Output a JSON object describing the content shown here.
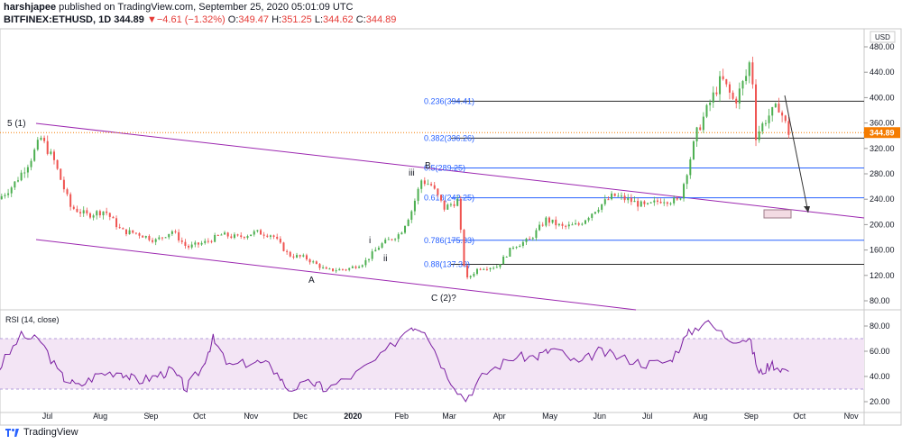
{
  "header": {
    "author": "harshjapee",
    "published_text": "published on TradingView.com, September 25, 2020 05:01:09 UTC",
    "symbol": "BITFINEX:ETHUSD, 1D",
    "last": "344.89",
    "change_arrow": "▼",
    "change": "−4.61 (−1.32%)",
    "open_label": "O:",
    "open": "349.47",
    "high_label": "H:",
    "high": "351.25",
    "low_label": "L:",
    "low": "344.62",
    "close_label": "C:",
    "close": "344.89"
  },
  "footer": {
    "brand": "TradingView"
  },
  "colors": {
    "up": "#26a69a",
    "up_fill": "#4caf50",
    "down": "#ef5350",
    "channel": "#9c27b0",
    "fib": "#2962ff",
    "rsi": "#7b1fa2",
    "rsi_band": "#f3e5f5",
    "price_tag": "#f57c00"
  },
  "chart_data": [
    {
      "type": "candlestick",
      "currency_label": "USD",
      "y_ticks": [
        "480.00",
        "440.00",
        "400.00",
        "360.00",
        "320.00",
        "280.00",
        "240.00",
        "200.00",
        "160.00",
        "120.00",
        "80.00"
      ],
      "x_ticks": [
        "Jul",
        "Aug",
        "Sep",
        "Oct",
        "Nov",
        "Dec",
        "2020",
        "Feb",
        "Mar",
        "Apr",
        "May",
        "Jun",
        "Jul",
        "Aug",
        "Sep",
        "Oct",
        "Nov"
      ],
      "ylim": [
        60,
        500
      ],
      "last_price": "344.89",
      "wave_labels": [
        "5 (1)",
        "A",
        "B",
        "C (2)?",
        "i",
        "ii",
        "iii"
      ],
      "fib_levels": [
        {
          "label": "0.236(394.41)",
          "value": 394.41
        },
        {
          "label": "0.382(336.26)",
          "value": 336.26
        },
        {
          "label": "0.5(289.25)",
          "value": 289.25
        },
        {
          "label": "0.618(242.25)",
          "value": 242.25
        },
        {
          "label": "0.786(175.33)",
          "value": 175.33
        },
        {
          "label": "0.88(137.39)",
          "value": 137.39
        }
      ],
      "close_path": [
        [
          "2019-06-01",
          240
        ],
        [
          "2019-06-10",
          262
        ],
        [
          "2019-06-20",
          300
        ],
        [
          "2019-06-27",
          336
        ],
        [
          "2019-07-05",
          300
        ],
        [
          "2019-07-15",
          228
        ],
        [
          "2019-07-25",
          215
        ],
        [
          "2019-08-05",
          222
        ],
        [
          "2019-08-15",
          190
        ],
        [
          "2019-08-25",
          186
        ],
        [
          "2019-09-05",
          175
        ],
        [
          "2019-09-15",
          190
        ],
        [
          "2019-09-24",
          164
        ],
        [
          "2019-10-05",
          172
        ],
        [
          "2019-10-15",
          184
        ],
        [
          "2019-10-25",
          180
        ],
        [
          "2019-11-05",
          188
        ],
        [
          "2019-11-15",
          184
        ],
        [
          "2019-11-25",
          152
        ],
        [
          "2019-12-05",
          148
        ],
        [
          "2019-12-18",
          128
        ],
        [
          "2019-12-31",
          130
        ],
        [
          "2020-01-10",
          140
        ],
        [
          "2020-01-20",
          168
        ],
        [
          "2020-02-01",
          186
        ],
        [
          "2020-02-08",
          222
        ],
        [
          "2020-02-14",
          270
        ],
        [
          "2020-02-20",
          262
        ],
        [
          "2020-02-28",
          226
        ],
        [
          "2020-03-07",
          238
        ],
        [
          "2020-03-12",
          112
        ],
        [
          "2020-03-20",
          132
        ],
        [
          "2020-03-31",
          134
        ],
        [
          "2020-04-10",
          166
        ],
        [
          "2020-04-20",
          176
        ],
        [
          "2020-04-30",
          208
        ],
        [
          "2020-05-10",
          196
        ],
        [
          "2020-05-20",
          200
        ],
        [
          "2020-05-31",
          226
        ],
        [
          "2020-06-10",
          246
        ],
        [
          "2020-06-20",
          238
        ],
        [
          "2020-06-30",
          228
        ],
        [
          "2020-07-10",
          240
        ],
        [
          "2020-07-20",
          236
        ],
        [
          "2020-07-25",
          285
        ],
        [
          "2020-07-31",
          345
        ],
        [
          "2020-08-08",
          392
        ],
        [
          "2020-08-15",
          430
        ],
        [
          "2020-08-23",
          392
        ],
        [
          "2020-08-31",
          440
        ],
        [
          "2020-09-02",
          468
        ],
        [
          "2020-09-05",
          340
        ],
        [
          "2020-09-12",
          370
        ],
        [
          "2020-09-19",
          386
        ],
        [
          "2020-09-25",
          344.89
        ]
      ]
    },
    {
      "type": "line",
      "name": "RSI (14, close)",
      "y_ticks": [
        "80.00",
        "60.00",
        "40.00",
        "20.00"
      ],
      "band": [
        30,
        70
      ],
      "ylim": [
        10,
        90
      ],
      "points": [
        [
          "2019-06-01",
          45
        ],
        [
          "2019-06-15",
          72
        ],
        [
          "2019-06-27",
          68
        ],
        [
          "2019-07-10",
          40
        ],
        [
          "2019-07-20",
          32
        ],
        [
          "2019-08-01",
          42
        ],
        [
          "2019-08-15",
          44
        ],
        [
          "2019-08-25",
          36
        ],
        [
          "2019-09-05",
          40
        ],
        [
          "2019-09-15",
          45
        ],
        [
          "2019-09-24",
          30
        ],
        [
          "2019-10-05",
          50
        ],
        [
          "2019-10-10",
          70
        ],
        [
          "2019-10-20",
          48
        ],
        [
          "2019-11-05",
          52
        ],
        [
          "2019-11-15",
          48
        ],
        [
          "2019-11-25",
          30
        ],
        [
          "2019-12-10",
          35
        ],
        [
          "2019-12-18",
          30
        ],
        [
          "2020-01-05",
          42
        ],
        [
          "2020-01-20",
          55
        ],
        [
          "2020-02-08",
          80
        ],
        [
          "2020-02-16",
          78
        ],
        [
          "2020-02-28",
          45
        ],
        [
          "2020-03-12",
          22
        ],
        [
          "2020-03-25",
          43
        ],
        [
          "2020-04-10",
          55
        ],
        [
          "2020-04-25",
          56
        ],
        [
          "2020-05-05",
          62
        ],
        [
          "2020-05-20",
          50
        ],
        [
          "2020-06-01",
          60
        ],
        [
          "2020-06-15",
          55
        ],
        [
          "2020-06-30",
          50
        ],
        [
          "2020-07-15",
          52
        ],
        [
          "2020-07-25",
          72
        ],
        [
          "2020-08-05",
          84
        ],
        [
          "2020-08-20",
          70
        ],
        [
          "2020-09-01",
          70
        ],
        [
          "2020-09-07",
          42
        ],
        [
          "2020-09-15",
          50
        ],
        [
          "2020-09-25",
          44
        ]
      ]
    }
  ]
}
